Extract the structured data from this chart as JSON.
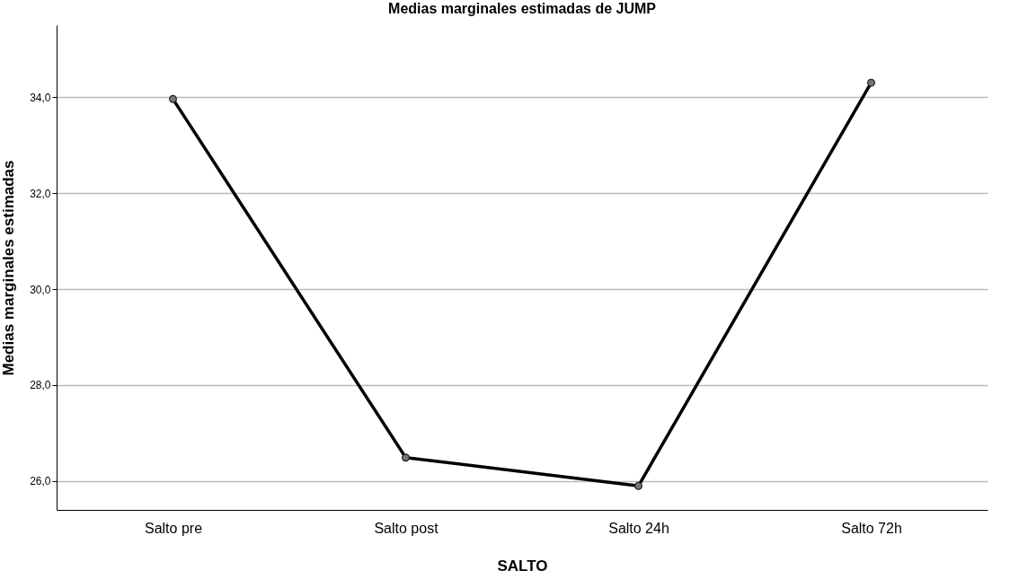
{
  "chart_data": {
    "type": "line",
    "title": "Medias marginales estimadas de JUMP",
    "xlabel": "SALTO",
    "ylabel": "Medias marginales estimadas",
    "categories": [
      "Salto pre",
      "Salto post",
      "Salto 24h",
      "Salto 72h"
    ],
    "series": [
      {
        "color": "#000000",
        "values": [
          33.96,
          26.49,
          25.9,
          34.3
        ]
      }
    ],
    "ylim": [
      25.4,
      35.5
    ],
    "yticks": [
      {
        "value": 26,
        "label": "26,0"
      },
      {
        "value": 28,
        "label": "28,0"
      },
      {
        "value": 30,
        "label": "30,0"
      },
      {
        "value": 32,
        "label": "32,0"
      },
      {
        "value": 34,
        "label": "34,0"
      }
    ],
    "grid": "y",
    "marker": "circle",
    "line_style": "solid"
  }
}
